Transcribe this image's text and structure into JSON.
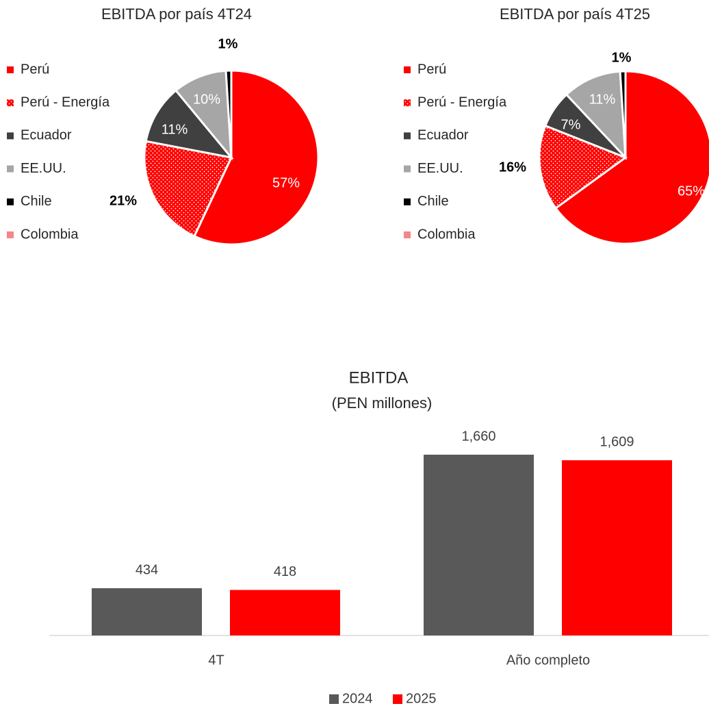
{
  "chart_data": [
    {
      "type": "pie",
      "title": "EBITDA por país 4T24",
      "categories": [
        "Perú",
        "Perú - Energía",
        "Ecuador",
        "EE.UU.",
        "Chile",
        "Colombia"
      ],
      "values": [
        57,
        21,
        11,
        10,
        1,
        0
      ],
      "value_labels": [
        "57%",
        "21%",
        "11%",
        "10%",
        "1%",
        null
      ],
      "colors": [
        "#ff0000",
        "#ff0000",
        "#404040",
        "#a6a6a6",
        "#000000",
        "#f4868a"
      ],
      "legend": "left"
    },
    {
      "type": "pie",
      "title": "EBITDA por país 4T25",
      "categories": [
        "Perú",
        "Perú - Energía",
        "Ecuador",
        "EE.UU.",
        "Chile",
        "Colombia"
      ],
      "values": [
        65,
        16,
        7,
        11,
        1,
        0
      ],
      "value_labels": [
        "65%",
        "16%",
        "7%",
        "11%",
        "1%",
        null
      ],
      "colors": [
        "#ff0000",
        "#ff0000",
        "#404040",
        "#a6a6a6",
        "#000000",
        "#f4868a"
      ],
      "legend": "left"
    },
    {
      "type": "bar",
      "title": "EBITDA",
      "subtitle": "(PEN millones)",
      "categories": [
        "4T",
        "Año completo"
      ],
      "series": [
        {
          "name": "2024",
          "color": "#595959",
          "values": [
            434,
            1660
          ],
          "value_labels": [
            "434",
            "1,660"
          ]
        },
        {
          "name": "2025",
          "color": "#ff0000",
          "values": [
            418,
            1609
          ],
          "value_labels": [
            "418",
            "1,609"
          ]
        }
      ],
      "legend": "bottom"
    }
  ]
}
